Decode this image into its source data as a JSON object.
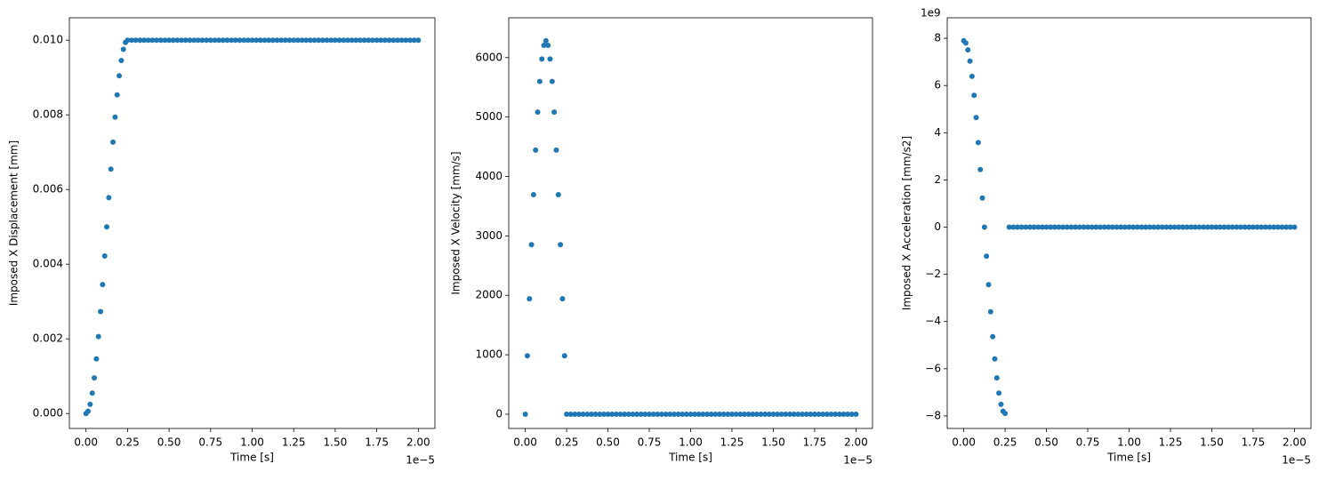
{
  "chart_data": [
    {
      "type": "scatter",
      "color": "#1f77b4",
      "xlabel": "Time [s]",
      "ylabel": "Imposed X Displacement [mm]",
      "x_offset_label": "1e−5",
      "xlim": [
        -0.1,
        2.1
      ],
      "ylim": [
        -0.0004,
        0.0106
      ],
      "xticks": [
        {
          "value": 0,
          "label": "0.00"
        },
        {
          "value": 0.25,
          "label": "0.25"
        },
        {
          "value": 0.5,
          "label": "0.50"
        },
        {
          "value": 0.75,
          "label": "0.75"
        },
        {
          "value": 1,
          "label": "1.00"
        },
        {
          "value": 1.25,
          "label": "1.25"
        },
        {
          "value": 1.5,
          "label": "1.50"
        },
        {
          "value": 1.75,
          "label": "1.75"
        },
        {
          "value": 2,
          "label": "2.00"
        }
      ],
      "yticks": [
        {
          "value": 0,
          "label": "0.000"
        },
        {
          "value": 0.002,
          "label": "0.002"
        },
        {
          "value": 0.004,
          "label": "0.004"
        },
        {
          "value": 0.006,
          "label": "0.006"
        },
        {
          "value": 0.008,
          "label": "0.008"
        },
        {
          "value": 0.01,
          "label": "0.010"
        }
      ],
      "x": [
        0,
        0.0125,
        0.025,
        0.0375,
        0.05,
        0.0625,
        0.075,
        0.0875,
        0.1,
        0.1125,
        0.125,
        0.1375,
        0.15,
        0.1625,
        0.175,
        0.1875,
        0.2,
        0.2125,
        0.225,
        0.2375,
        0.25,
        0.275,
        0.3,
        0.325,
        0.35,
        0.375,
        0.4,
        0.425,
        0.45,
        0.475,
        0.5,
        0.525,
        0.55,
        0.575,
        0.6,
        0.625,
        0.65,
        0.675,
        0.7,
        0.725,
        0.75,
        0.775,
        0.8,
        0.825,
        0.85,
        0.875,
        0.9,
        0.925,
        0.95,
        0.975,
        1.0,
        1.025,
        1.05,
        1.075,
        1.1,
        1.125,
        1.15,
        1.175,
        1.2,
        1.225,
        1.25,
        1.275,
        1.3,
        1.325,
        1.35,
        1.375,
        1.4,
        1.425,
        1.45,
        1.475,
        1.5,
        1.525,
        1.55,
        1.575,
        1.6,
        1.625,
        1.65,
        1.675,
        1.7,
        1.725,
        1.75,
        1.775,
        1.8,
        1.825,
        1.85,
        1.875,
        1.9,
        1.925,
        1.95,
        1.975,
        2.0
      ],
      "values": [
        0,
        6.16e-05,
        0.000245,
        0.000545,
        0.000955,
        0.001464,
        0.002061,
        0.00273,
        0.003455,
        0.004218,
        0.005,
        0.005782,
        0.006545,
        0.00727,
        0.007939,
        0.008536,
        0.009045,
        0.009455,
        0.009755,
        0.009938,
        0.01,
        0.01,
        0.01,
        0.01,
        0.01,
        0.01,
        0.01,
        0.01,
        0.01,
        0.01,
        0.01,
        0.01,
        0.01,
        0.01,
        0.01,
        0.01,
        0.01,
        0.01,
        0.01,
        0.01,
        0.01,
        0.01,
        0.01,
        0.01,
        0.01,
        0.01,
        0.01,
        0.01,
        0.01,
        0.01,
        0.01,
        0.01,
        0.01,
        0.01,
        0.01,
        0.01,
        0.01,
        0.01,
        0.01,
        0.01,
        0.01,
        0.01,
        0.01,
        0.01,
        0.01,
        0.01,
        0.01,
        0.01,
        0.01,
        0.01,
        0.01,
        0.01,
        0.01,
        0.01,
        0.01,
        0.01,
        0.01,
        0.01,
        0.01,
        0.01,
        0.01,
        0.01,
        0.01,
        0.01,
        0.01,
        0.01,
        0.01,
        0.01,
        0.01,
        0.01,
        0.01
      ]
    },
    {
      "type": "scatter",
      "color": "#1f77b4",
      "xlabel": "Time [s]",
      "ylabel": "Imposed X Velocity [mm/s]",
      "x_offset_label": "1e−5",
      "xlim": [
        -0.1,
        2.1
      ],
      "ylim": [
        -240,
        6670
      ],
      "xticks": [
        {
          "value": 0,
          "label": "0.00"
        },
        {
          "value": 0.25,
          "label": "0.25"
        },
        {
          "value": 0.5,
          "label": "0.50"
        },
        {
          "value": 0.75,
          "label": "0.75"
        },
        {
          "value": 1,
          "label": "1.00"
        },
        {
          "value": 1.25,
          "label": "1.25"
        },
        {
          "value": 1.5,
          "label": "1.50"
        },
        {
          "value": 1.75,
          "label": "1.75"
        },
        {
          "value": 2,
          "label": "2.00"
        }
      ],
      "yticks": [
        0,
        1000,
        2000,
        3000,
        4000,
        5000,
        6000
      ],
      "x": [
        0,
        0.0125,
        0.025,
        0.0375,
        0.05,
        0.0625,
        0.075,
        0.0875,
        0.1,
        0.1125,
        0.125,
        0.1375,
        0.15,
        0.1625,
        0.175,
        0.1875,
        0.2,
        0.2125,
        0.225,
        0.2375,
        0.25,
        0.275,
        0.3,
        0.325,
        0.35,
        0.375,
        0.4,
        0.425,
        0.45,
        0.475,
        0.5,
        0.525,
        0.55,
        0.575,
        0.6,
        0.625,
        0.65,
        0.675,
        0.7,
        0.725,
        0.75,
        0.775,
        0.8,
        0.825,
        0.85,
        0.875,
        0.9,
        0.925,
        0.95,
        0.975,
        1.0,
        1.025,
        1.05,
        1.075,
        1.1,
        1.125,
        1.15,
        1.175,
        1.2,
        1.225,
        1.25,
        1.275,
        1.3,
        1.325,
        1.35,
        1.375,
        1.4,
        1.425,
        1.45,
        1.475,
        1.5,
        1.525,
        1.55,
        1.575,
        1.6,
        1.625,
        1.65,
        1.675,
        1.7,
        1.725,
        1.75,
        1.775,
        1.8,
        1.825,
        1.85,
        1.875,
        1.9,
        1.925,
        1.95,
        1.975,
        2.0
      ],
      "values": [
        0,
        983,
        1942,
        2853,
        3693,
        4443,
        5083,
        5598,
        5976,
        6206,
        6283,
        6206,
        5976,
        5598,
        5083,
        4443,
        3693,
        2853,
        1942,
        983,
        0,
        0,
        0,
        0,
        0,
        0,
        0,
        0,
        0,
        0,
        0,
        0,
        0,
        0,
        0,
        0,
        0,
        0,
        0,
        0,
        0,
        0,
        0,
        0,
        0,
        0,
        0,
        0,
        0,
        0,
        0,
        0,
        0,
        0,
        0,
        0,
        0,
        0,
        0,
        0,
        0,
        0,
        0,
        0,
        0,
        0,
        0,
        0,
        0,
        0,
        0,
        0,
        0,
        0,
        0,
        0,
        0,
        0,
        0,
        0,
        0,
        0,
        0,
        0,
        0,
        0,
        0,
        0,
        0,
        0,
        0
      ]
    },
    {
      "type": "scatter",
      "color": "#1f77b4",
      "xlabel": "Time [s]",
      "ylabel": "Imposed X Acceleration [mm/s2]",
      "x_offset_label": "1e−5",
      "y_offset_label": "1e9",
      "xlim": [
        -0.1,
        2.1
      ],
      "ylim": [
        -8.53,
        8.87
      ],
      "xticks": [
        {
          "value": 0,
          "label": "0.00"
        },
        {
          "value": 0.25,
          "label": "0.25"
        },
        {
          "value": 0.5,
          "label": "0.50"
        },
        {
          "value": 0.75,
          "label": "0.75"
        },
        {
          "value": 1,
          "label": "1.00"
        },
        {
          "value": 1.25,
          "label": "1.25"
        },
        {
          "value": 1.5,
          "label": "1.50"
        },
        {
          "value": 1.75,
          "label": "1.75"
        },
        {
          "value": 2,
          "label": "2.00"
        }
      ],
      "yticks": [
        {
          "value": -8,
          "label": "−8"
        },
        {
          "value": -6,
          "label": "−6"
        },
        {
          "value": -4,
          "label": "−4"
        },
        {
          "value": -2,
          "label": "−2"
        },
        0,
        2,
        4,
        6,
        8
      ],
      "x": [
        0,
        0.0125,
        0.025,
        0.0375,
        0.05,
        0.0625,
        0.075,
        0.0875,
        0.1,
        0.1125,
        0.125,
        0.1375,
        0.15,
        0.1625,
        0.175,
        0.1875,
        0.2,
        0.2125,
        0.225,
        0.2375,
        0.25,
        0.275,
        0.3,
        0.325,
        0.35,
        0.375,
        0.4,
        0.425,
        0.45,
        0.475,
        0.5,
        0.525,
        0.55,
        0.575,
        0.6,
        0.625,
        0.65,
        0.675,
        0.7,
        0.725,
        0.75,
        0.775,
        0.8,
        0.825,
        0.85,
        0.875,
        0.9,
        0.925,
        0.95,
        0.975,
        1.0,
        1.025,
        1.05,
        1.075,
        1.1,
        1.125,
        1.15,
        1.175,
        1.2,
        1.225,
        1.25,
        1.275,
        1.3,
        1.325,
        1.35,
        1.375,
        1.4,
        1.425,
        1.45,
        1.475,
        1.5,
        1.525,
        1.55,
        1.575,
        1.6,
        1.625,
        1.65,
        1.675,
        1.7,
        1.725,
        1.75,
        1.775,
        1.8,
        1.825,
        1.85,
        1.875,
        1.9,
        1.925,
        1.95,
        1.975,
        2.0
      ],
      "values": [
        7.896,
        7.799,
        7.51,
        7.035,
        6.388,
        5.583,
        4.641,
        3.585,
        2.44,
        1.235,
        0,
        -1.235,
        -2.44,
        -3.585,
        -4.641,
        -5.583,
        -6.388,
        -7.035,
        -7.51,
        -7.799,
        -7.896,
        0,
        0,
        0,
        0,
        0,
        0,
        0,
        0,
        0,
        0,
        0,
        0,
        0,
        0,
        0,
        0,
        0,
        0,
        0,
        0,
        0,
        0,
        0,
        0,
        0,
        0,
        0,
        0,
        0,
        0,
        0,
        0,
        0,
        0,
        0,
        0,
        0,
        0,
        0,
        0,
        0,
        0,
        0,
        0,
        0,
        0,
        0,
        0,
        0,
        0,
        0,
        0,
        0,
        0,
        0,
        0,
        0,
        0,
        0,
        0,
        0,
        0,
        0,
        0,
        0,
        0,
        0,
        0,
        0,
        0
      ]
    }
  ]
}
